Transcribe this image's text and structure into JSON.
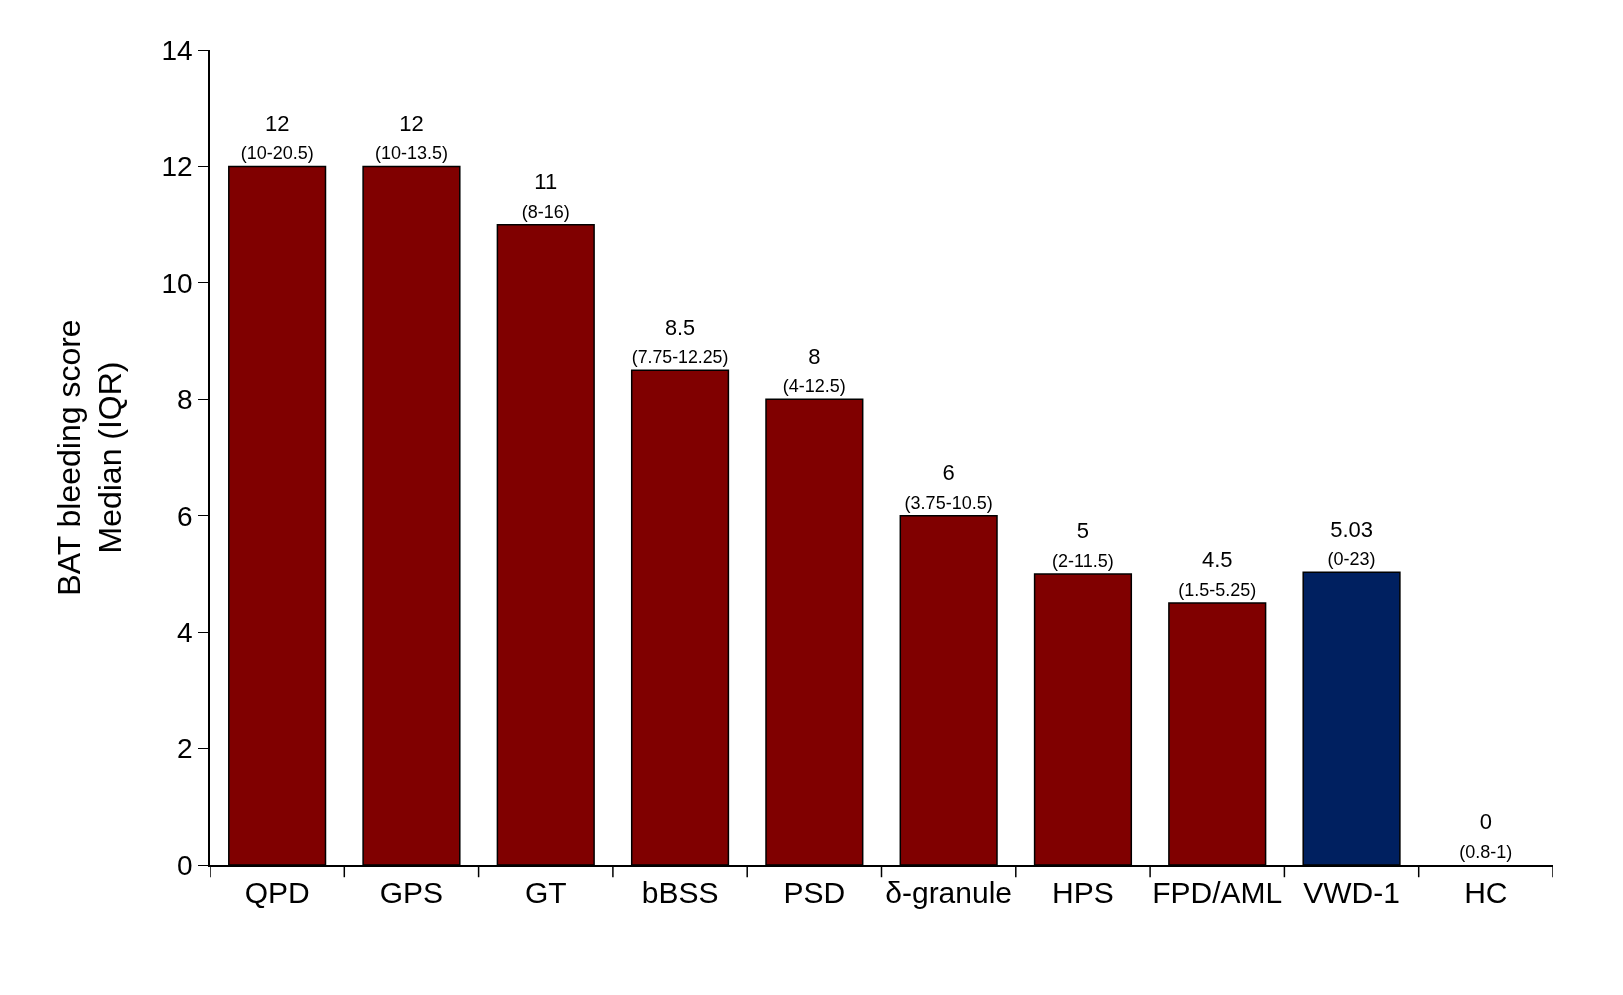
{
  "chart_data": {
    "type": "bar",
    "ylabel": "BAT bleeding score\nMedian (IQR)",
    "categories": [
      "QPD",
      "GPS",
      "GT",
      "bBSS",
      "PSD",
      "δ-granule",
      "HPS",
      "FPD/AML",
      "VWD-1",
      "HC"
    ],
    "values": [
      12,
      12,
      11,
      8.5,
      8,
      6,
      5,
      4.5,
      5.03,
      0
    ],
    "colors": [
      "#800000",
      "#800000",
      "#800000",
      "#800000",
      "#800000",
      "#800000",
      "#800000",
      "#800000",
      "#002060",
      "#800000"
    ],
    "value_labels": [
      "12\n(10-20.5)",
      "12\n(10-13.5)",
      "11\n(8-16)",
      "8.5\n(7.75-12.25)",
      "8\n(4-12.5)",
      "6\n(3.75-10.5)",
      "5\n(2-11.5)",
      "4.5\n(1.5-5.25)",
      "5.03\n(0-23)",
      "0\n(0.8-1)"
    ],
    "ylim": [
      0,
      14
    ],
    "yticks": [
      0,
      2,
      4,
      6,
      8,
      10,
      12,
      14
    ]
  }
}
